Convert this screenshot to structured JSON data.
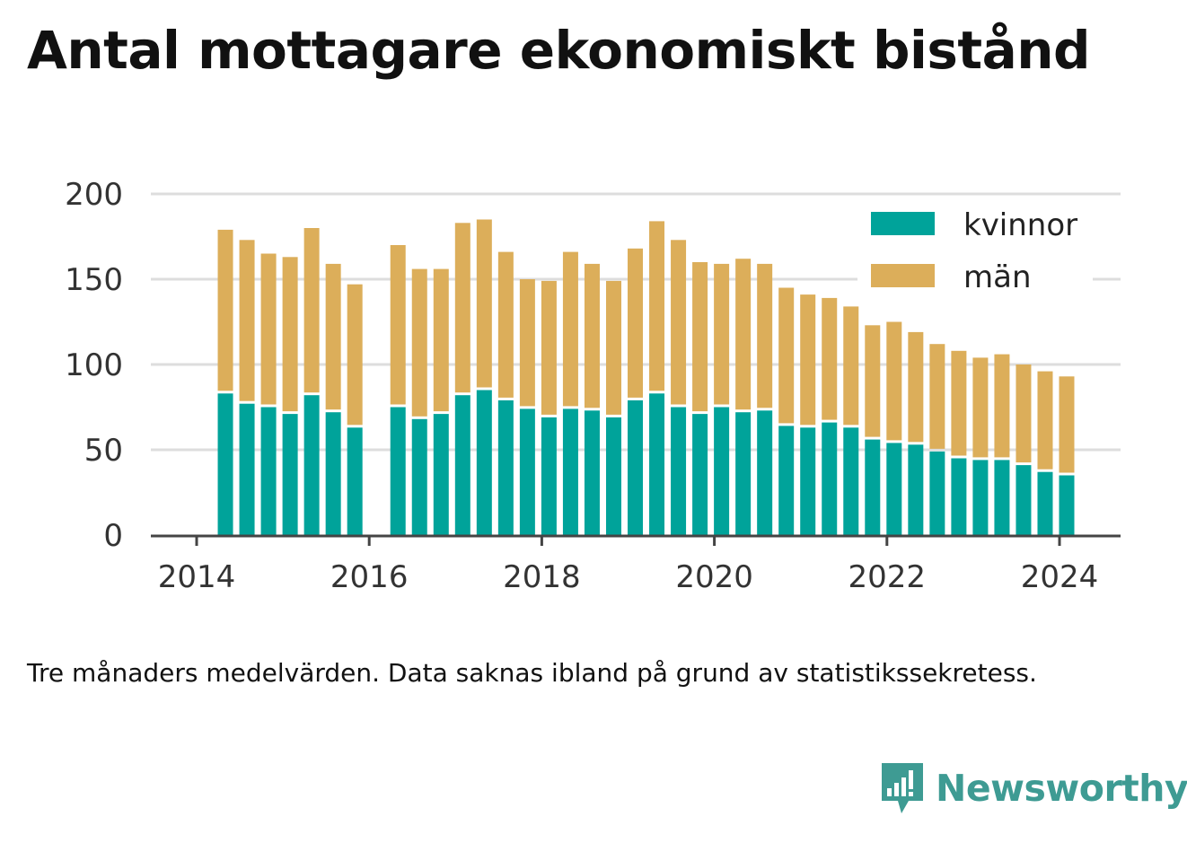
{
  "title": "Antal mottagare ekonomiskt bistånd",
  "note": "Tre månaders medelvärden. Data saknas ibland på grund av statistikssekretess.",
  "brand": {
    "name": "Newsworthy",
    "icon": "bar-chart-speech-bubble-icon"
  },
  "colors": {
    "kvinnor": "#00a39a",
    "man": "#dcae5a",
    "grid": "#dddddd",
    "axis": "#444444"
  },
  "chart_data": {
    "type": "bar",
    "stacked": true,
    "x_ticks": [
      "2014",
      "2016",
      "2018",
      "2020",
      "2022",
      "2024"
    ],
    "x_range": [
      "2014-01",
      "2024-12"
    ],
    "ylim": [
      0,
      200
    ],
    "y_ticks": [
      "0",
      "50",
      "100",
      "150",
      "200"
    ],
    "grid": true,
    "legend_position": "top-right",
    "x": [
      "2014-05",
      "2014-08",
      "2014-11",
      "2015-02",
      "2015-05",
      "2015-08",
      "2015-11",
      "2016-05",
      "2016-08",
      "2016-11",
      "2017-02",
      "2017-05",
      "2017-08",
      "2017-11",
      "2018-02",
      "2018-05",
      "2018-08",
      "2018-11",
      "2019-02",
      "2019-05",
      "2019-08",
      "2019-11",
      "2020-02",
      "2020-05",
      "2020-08",
      "2020-11",
      "2021-02",
      "2021-05",
      "2021-08",
      "2021-11",
      "2022-02",
      "2022-05",
      "2022-08",
      "2022-11",
      "2023-02",
      "2023-05",
      "2023-08",
      "2023-11",
      "2024-02"
    ],
    "series": [
      {
        "name": "kvinnor",
        "values": [
          83,
          77,
          75,
          71,
          82,
          72,
          63,
          75,
          68,
          71,
          82,
          85,
          79,
          74,
          69,
          74,
          73,
          69,
          79,
          83,
          75,
          71,
          75,
          72,
          73,
          64,
          63,
          66,
          63,
          56,
          54,
          53,
          49,
          45,
          44,
          44,
          41,
          37,
          35
        ]
      },
      {
        "name": "män",
        "values": [
          96,
          96,
          90,
          92,
          98,
          87,
          84,
          95,
          88,
          85,
          101,
          100,
          87,
          76,
          80,
          92,
          86,
          80,
          89,
          101,
          98,
          89,
          84,
          90,
          86,
          81,
          78,
          73,
          71,
          67,
          71,
          66,
          63,
          63,
          60,
          62,
          59,
          59,
          58
        ]
      }
    ]
  }
}
